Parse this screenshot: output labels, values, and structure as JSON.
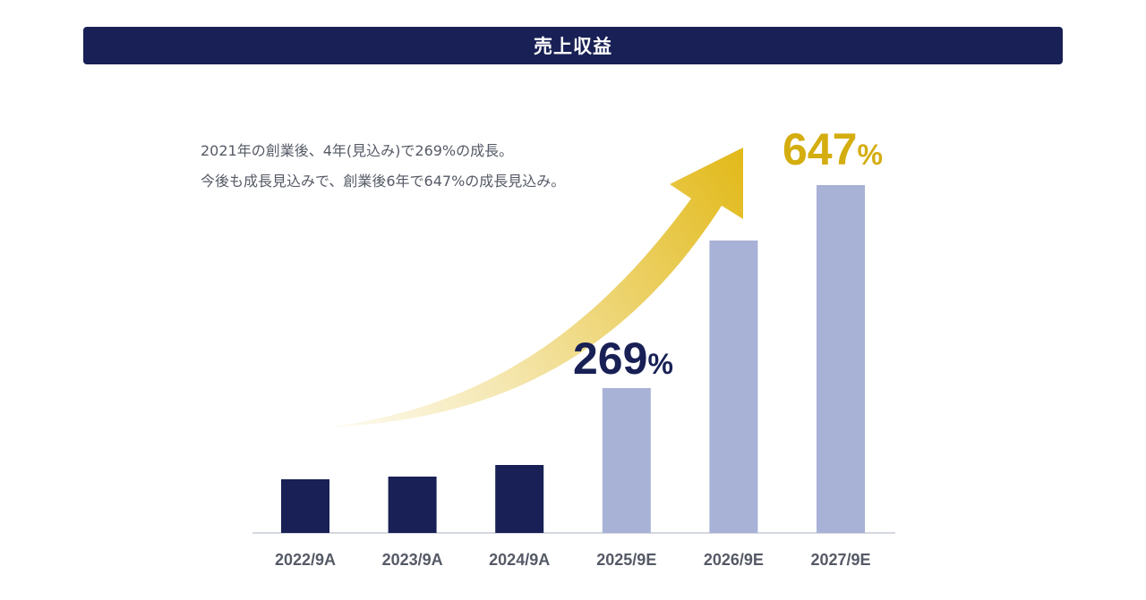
{
  "title": "売上収益",
  "description": [
    "2021年の創業後、4年(見込み)で269%の成長。",
    "今後も成長見込みで、創業後6年で647%の成長見込み。"
  ],
  "colors": {
    "title_bg": "#182055",
    "actual_bar": "#182055",
    "estimate_bar": "#a8b1d6",
    "arrow": "#e2b918",
    "highlight_269": "#182055",
    "highlight_647": "#d4ad0f"
  },
  "highlights": [
    {
      "value": "269",
      "unit": "%"
    },
    {
      "value": "647",
      "unit": "%"
    }
  ],
  "chart_data": {
    "type": "bar",
    "title": "売上収益",
    "categories": [
      "2022/9A",
      "2023/9A",
      "2024/9A",
      "2025/9E",
      "2026/9E",
      "2027/9E"
    ],
    "values": [
      60,
      63,
      76,
      162,
      327,
      389
    ],
    "kind": [
      "actual",
      "actual",
      "actual",
      "estimate",
      "estimate",
      "estimate"
    ],
    "ylim": [
      0,
      400
    ],
    "grid": false,
    "legend": "none",
    "xlabel": "",
    "ylabel": ""
  }
}
